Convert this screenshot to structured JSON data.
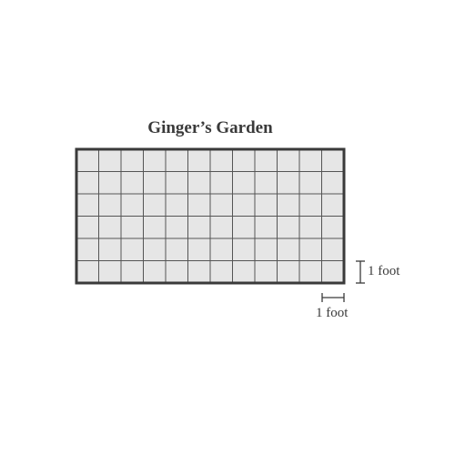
{
  "title": "Ginger’s Garden",
  "grid": {
    "columns": 12,
    "rows": 6,
    "fill_color": "#e6e6e6",
    "grid_line_color": "#555555",
    "border_color": "#3a3a3a"
  },
  "scale_labels": {
    "vertical": "1 foot",
    "horizontal": "1 foot"
  }
}
